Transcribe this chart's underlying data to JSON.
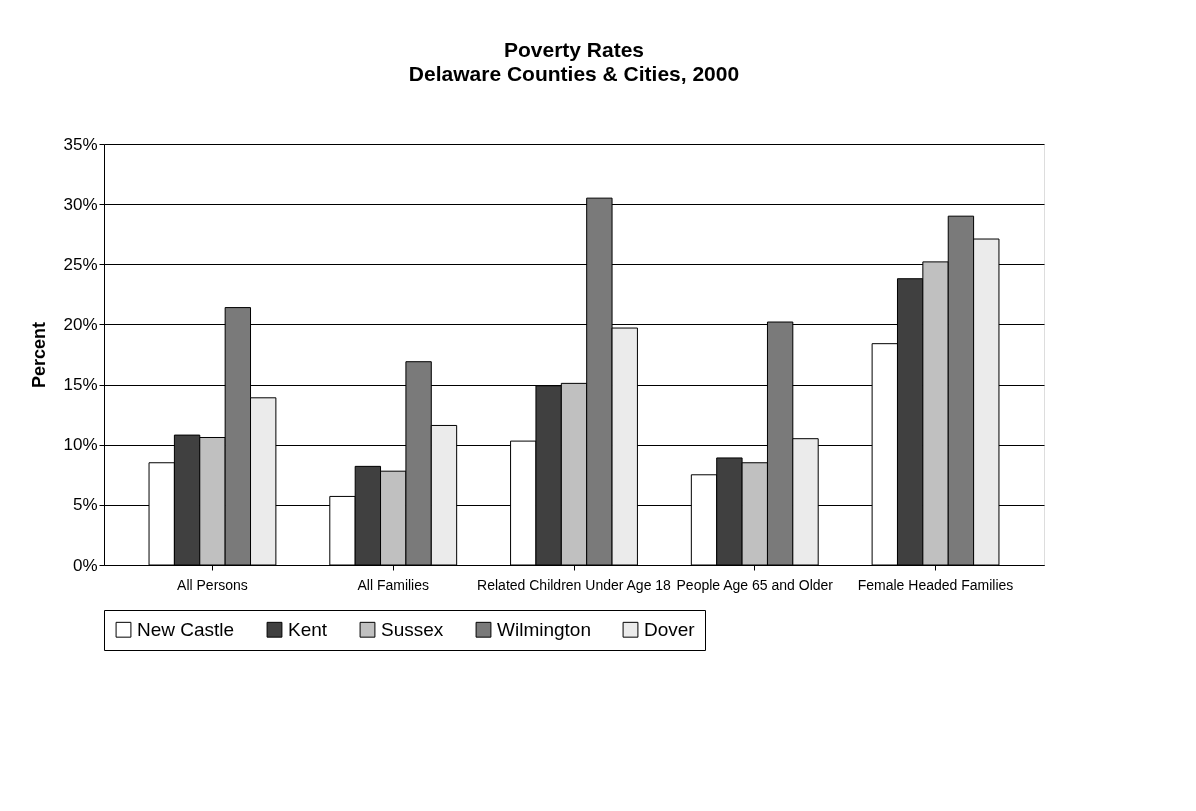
{
  "chart_data": {
    "type": "bar",
    "title": "Poverty Rates",
    "subtitle": "Delaware Counties & Cities, 2000",
    "ylabel": "Percent",
    "categories": [
      "All Persons",
      "All Families",
      "Related Children Under Age 18",
      "People Age 65 and Older",
      "Female Headed Families"
    ],
    "series": [
      {
        "name": "New Castle",
        "color": "#ffffff",
        "values": [
          8.5,
          5.7,
          10.3,
          7.5,
          18.4
        ]
      },
      {
        "name": "Kent",
        "color": "#404040",
        "values": [
          10.8,
          8.2,
          14.9,
          8.9,
          23.8
        ]
      },
      {
        "name": "Sussex",
        "color": "#c0c0c0",
        "values": [
          10.6,
          7.8,
          15.1,
          8.5,
          25.2
        ]
      },
      {
        "name": "Wilmington",
        "color": "#7a7a7a",
        "values": [
          21.4,
          16.9,
          30.5,
          20.2,
          29.0
        ]
      },
      {
        "name": "Dover",
        "color": "#ebebeb",
        "values": [
          13.9,
          11.6,
          19.7,
          10.5,
          27.1
        ]
      }
    ],
    "ylim": [
      0,
      35
    ],
    "yticks": [
      {
        "value": 0,
        "label": "0%"
      },
      {
        "value": 5,
        "label": "5%"
      },
      {
        "value": 10,
        "label": "10%"
      },
      {
        "value": 15,
        "label": "15%"
      },
      {
        "value": 20,
        "label": "20%"
      },
      {
        "value": 25,
        "label": "25%"
      },
      {
        "value": 30,
        "label": "30%"
      },
      {
        "value": 35,
        "label": "35%"
      }
    ],
    "grid": "y",
    "legend": "bottom"
  }
}
